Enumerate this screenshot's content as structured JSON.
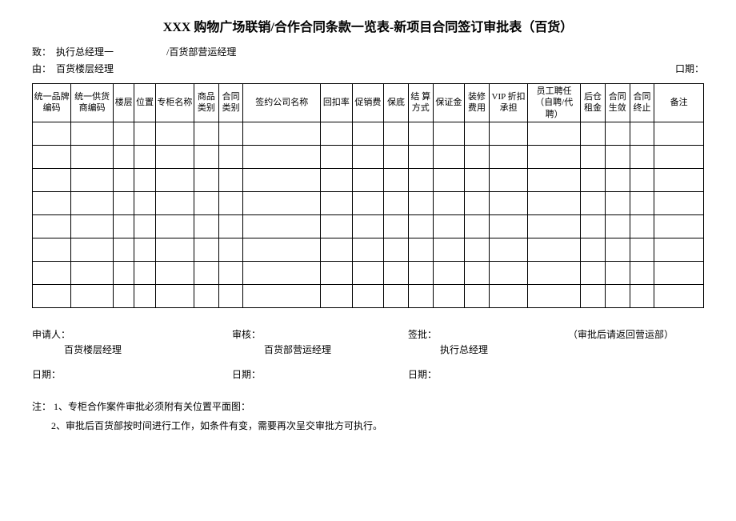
{
  "title": "XXX 购物广场联销/合作合同条款一览表-新项目合同签订审批表（百货）",
  "header": {
    "to_label": "致：",
    "to_value": "执行总经理一",
    "to_dept": "/百货部营运经理",
    "by_label": "由：",
    "by_value": "百货楼层经理",
    "date_label": "口期："
  },
  "columns": [
    "统一品牌编码",
    "统一供货商编码",
    "楼层",
    "位置",
    "专柜名称",
    "商品类别",
    "合同类别",
    "签约公司名称",
    "回扣率",
    "促销费",
    "保底",
    "结 算方式",
    "保证金",
    "装修费用",
    "VIP 折扣承担",
    "员工聘任（自聘/代聘）",
    "后仓租金",
    "合同生敛",
    "合同终止",
    "备注"
  ],
  "col_widths_pct": [
    5.5,
    6.0,
    3.0,
    3.0,
    5.5,
    3.5,
    3.5,
    11.0,
    4.5,
    4.5,
    3.5,
    3.5,
    4.5,
    3.5,
    5.5,
    7.5,
    3.5,
    3.5,
    3.5,
    7.0
  ],
  "body_rows": 8,
  "sign": {
    "applicant_label": "申请人：",
    "applicant_role": "百货楼层经理",
    "review_label": "审核：",
    "review_role": "百货部营运经理",
    "approve_label": "签批：",
    "approve_role": "执行总经理",
    "return_note": "（审批后请返回营运部）",
    "date_label": "日期："
  },
  "notes": {
    "prefix": "注：",
    "n1": "1、专柜合作案件审批必须附有关位置平面图：",
    "n2": "2、审批后百货部按时间进行工作，如条件有变，需要再次呈交审批方可执行。"
  }
}
